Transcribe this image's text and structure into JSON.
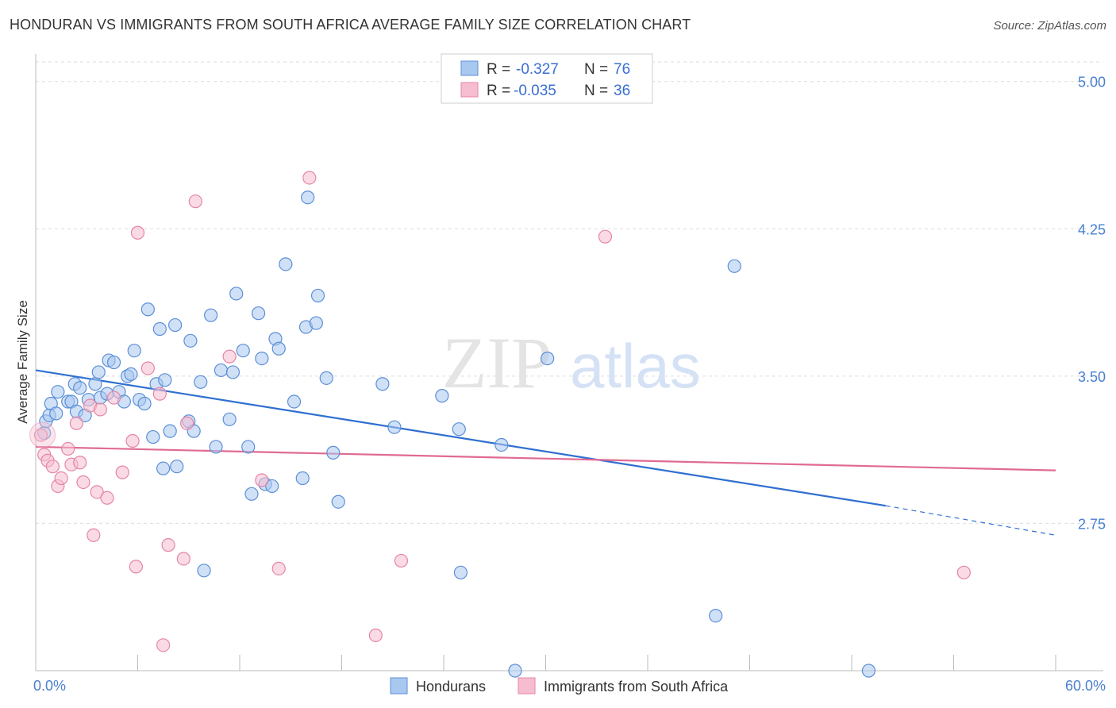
{
  "header": {
    "title": "HONDURAN VS IMMIGRANTS FROM SOUTH AFRICA AVERAGE FAMILY SIZE CORRELATION CHART",
    "source": "Source: ZipAtlas.com"
  },
  "watermark": {
    "zip": "ZIP",
    "atlas": "atlas"
  },
  "colors": {
    "blue_fill": "#a9c8f0",
    "blue_stroke": "#5b8fd6",
    "blue_line": "#2f6fd0",
    "pink_fill": "#f6bdd0",
    "pink_stroke": "#e585a6",
    "pink_line": "#e06a95",
    "grid": "#dddddd"
  },
  "legend": {
    "rows": [
      {
        "r_label": "R = ",
        "r_value": "-0.327",
        "n_label": "N = ",
        "n_value": "76"
      },
      {
        "r_label": "R = ",
        "r_value": "-0.035",
        "n_label": "N = ",
        "n_value": "36"
      }
    ]
  },
  "bottom_legend": [
    "Hondurans",
    "Immigrants from South Africa"
  ],
  "chart_data": {
    "type": "scatter",
    "title": "HONDURAN VS IMMIGRANTS FROM SOUTH AFRICA AVERAGE FAMILY SIZE CORRELATION CHART",
    "xlabel": "",
    "ylabel": "Average Family Size",
    "xlim": [
      0,
      60
    ],
    "ylim": [
      2.0,
      5.1
    ],
    "x_tick_labels": [
      "0.0%",
      "60.0%"
    ],
    "y_ticks": [
      2.75,
      3.5,
      4.25,
      5.0
    ],
    "y_tick_labels": [
      "2.75",
      "3.50",
      "4.25",
      "5.00"
    ],
    "grid": "horizontal dashed",
    "legend_position": "top-center",
    "series": [
      {
        "name": "Hondurans",
        "r": -0.327,
        "n": 76,
        "trend": {
          "x0": 0,
          "y0": 3.53,
          "x1": 50,
          "y1": 2.84,
          "dashed_to_x": 60,
          "dashed_to_y": 2.69
        },
        "points": [
          [
            0.5,
            3.21
          ],
          [
            0.6,
            3.27
          ],
          [
            0.8,
            3.3
          ],
          [
            0.9,
            3.36
          ],
          [
            1.2,
            3.31
          ],
          [
            1.3,
            3.42
          ],
          [
            1.9,
            3.37
          ],
          [
            2.1,
            3.37
          ],
          [
            2.3,
            3.46
          ],
          [
            2.4,
            3.32
          ],
          [
            2.6,
            3.44
          ],
          [
            2.9,
            3.3
          ],
          [
            3.1,
            3.38
          ],
          [
            3.5,
            3.46
          ],
          [
            3.7,
            3.52
          ],
          [
            3.8,
            3.39
          ],
          [
            4.2,
            3.41
          ],
          [
            4.3,
            3.58
          ],
          [
            4.6,
            3.57
          ],
          [
            4.9,
            3.42
          ],
          [
            5.2,
            3.37
          ],
          [
            5.4,
            3.5
          ],
          [
            5.6,
            3.51
          ],
          [
            5.8,
            3.63
          ],
          [
            6.1,
            3.38
          ],
          [
            6.4,
            3.36
          ],
          [
            6.6,
            3.84
          ],
          [
            6.9,
            3.19
          ],
          [
            7.1,
            3.46
          ],
          [
            7.3,
            3.74
          ],
          [
            7.6,
            3.48
          ],
          [
            7.5,
            3.03
          ],
          [
            7.9,
            3.22
          ],
          [
            8.3,
            3.04
          ],
          [
            8.2,
            3.76
          ],
          [
            9.1,
            3.68
          ],
          [
            9.0,
            3.27
          ],
          [
            9.3,
            3.22
          ],
          [
            9.7,
            3.47
          ],
          [
            9.9,
            2.51
          ],
          [
            10.3,
            3.81
          ],
          [
            10.6,
            3.14
          ],
          [
            10.9,
            3.53
          ],
          [
            11.4,
            3.28
          ],
          [
            11.6,
            3.52
          ],
          [
            11.8,
            3.92
          ],
          [
            12.2,
            3.63
          ],
          [
            12.5,
            3.14
          ],
          [
            12.7,
            2.9
          ],
          [
            13.1,
            3.82
          ],
          [
            13.3,
            3.59
          ],
          [
            13.5,
            2.95
          ],
          [
            13.9,
            2.94
          ],
          [
            14.1,
            3.69
          ],
          [
            14.3,
            3.64
          ],
          [
            14.7,
            4.07
          ],
          [
            15.2,
            3.37
          ],
          [
            15.7,
            2.98
          ],
          [
            15.9,
            3.75
          ],
          [
            16.0,
            4.41
          ],
          [
            16.5,
            3.77
          ],
          [
            16.6,
            3.91
          ],
          [
            17.1,
            3.49
          ],
          [
            17.5,
            3.11
          ],
          [
            17.8,
            2.86
          ],
          [
            20.4,
            3.46
          ],
          [
            21.1,
            3.24
          ],
          [
            23.9,
            3.4
          ],
          [
            24.9,
            3.23
          ],
          [
            25.0,
            2.5
          ],
          [
            27.4,
            3.15
          ],
          [
            28.2,
            2.0
          ],
          [
            30.1,
            3.59
          ],
          [
            40.0,
            2.28
          ],
          [
            41.1,
            4.06
          ],
          [
            49.0,
            2.0
          ]
        ]
      },
      {
        "name": "Immigrants from South Africa",
        "r": -0.035,
        "n": 36,
        "trend": {
          "x0": 0,
          "y0": 3.14,
          "x1": 60,
          "y1": 3.02
        },
        "points": [
          [
            0.3,
            3.2
          ],
          [
            0.5,
            3.1
          ],
          [
            0.7,
            3.07
          ],
          [
            1.0,
            3.04
          ],
          [
            1.3,
            2.94
          ],
          [
            1.5,
            2.98
          ],
          [
            1.9,
            3.13
          ],
          [
            2.1,
            3.05
          ],
          [
            2.4,
            3.26
          ],
          [
            2.6,
            3.06
          ],
          [
            2.8,
            2.96
          ],
          [
            3.2,
            3.35
          ],
          [
            3.4,
            2.69
          ],
          [
            3.6,
            2.91
          ],
          [
            3.8,
            3.33
          ],
          [
            4.2,
            2.88
          ],
          [
            4.6,
            3.39
          ],
          [
            5.1,
            3.01
          ],
          [
            5.7,
            3.17
          ],
          [
            5.9,
            2.53
          ],
          [
            6.0,
            4.23
          ],
          [
            6.6,
            3.54
          ],
          [
            7.3,
            3.41
          ],
          [
            7.5,
            2.13
          ],
          [
            7.8,
            2.64
          ],
          [
            8.7,
            2.57
          ],
          [
            8.9,
            3.26
          ],
          [
            9.4,
            4.39
          ],
          [
            11.4,
            3.6
          ],
          [
            13.3,
            2.97
          ],
          [
            14.3,
            2.52
          ],
          [
            16.1,
            4.51
          ],
          [
            20.0,
            2.18
          ],
          [
            21.5,
            2.56
          ],
          [
            33.5,
            4.21
          ],
          [
            54.6,
            2.5
          ]
        ]
      }
    ]
  }
}
